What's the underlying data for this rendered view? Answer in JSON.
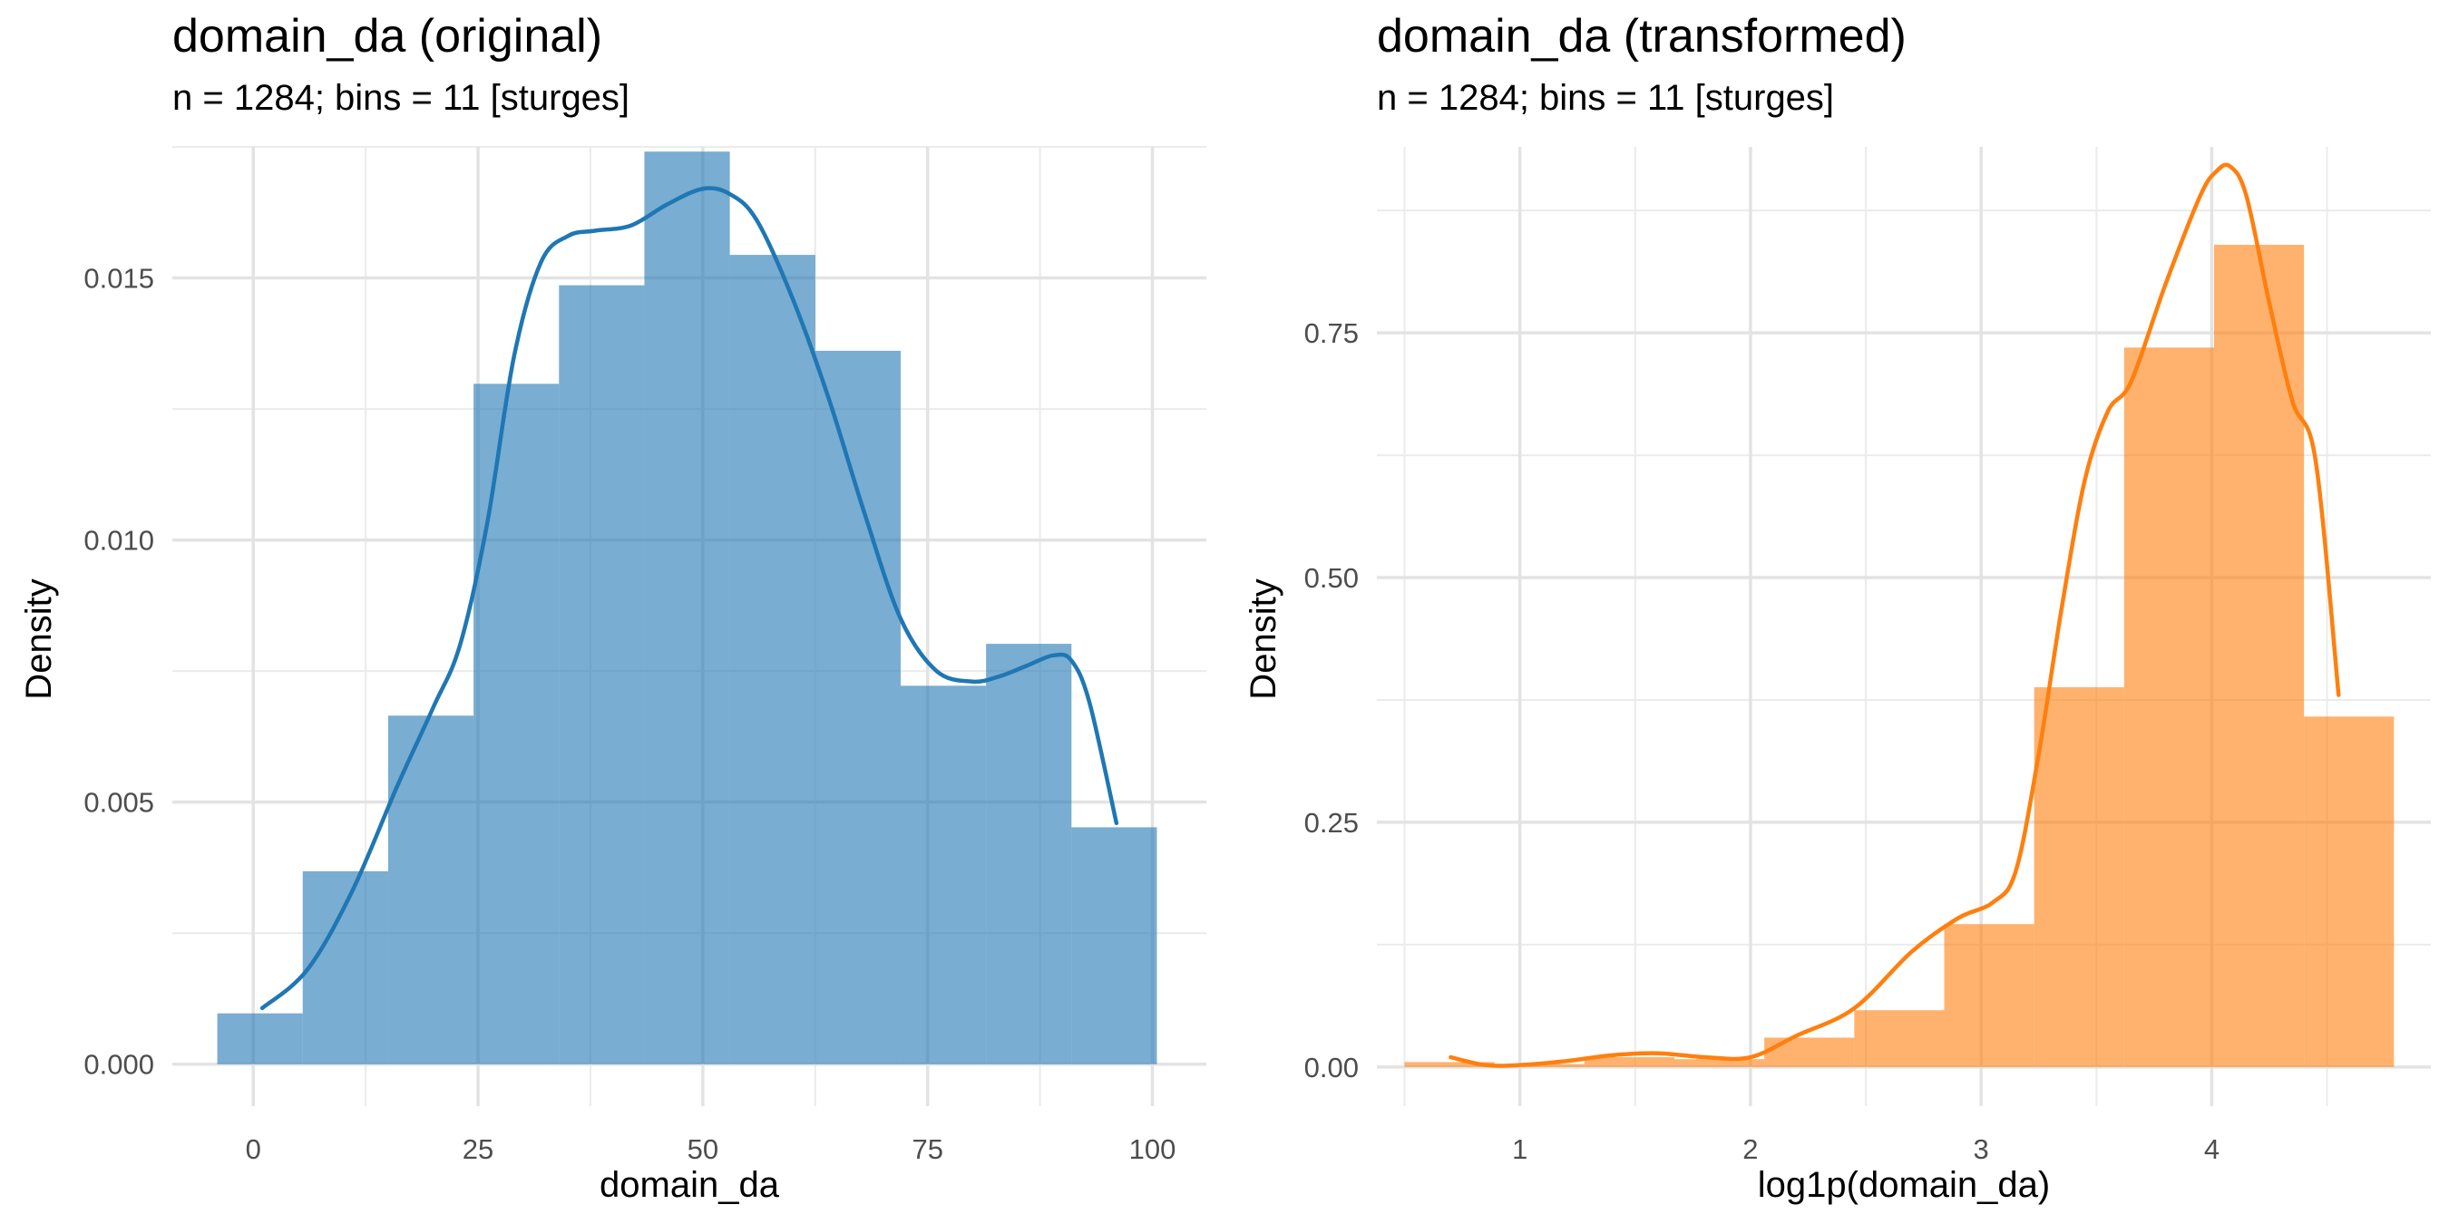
{
  "chart_data": [
    {
      "type": "histogram",
      "title": "domain_da (original)",
      "subtitle": "n = 1284; bins = 11 [sturges]",
      "xlabel": "domain_da",
      "ylabel": "Density",
      "xlim": [
        -9,
        106
      ],
      "ylim": [
        -0.0008,
        0.0175
      ],
      "xticks": [
        0,
        25,
        50,
        75,
        100
      ],
      "yticks": [
        0.0,
        0.005,
        0.01,
        0.015
      ],
      "ytick_labels": [
        "0.000",
        "0.005",
        "0.010",
        "0.015"
      ],
      "grid": true,
      "color": "#1f77b4",
      "bins": [
        {
          "x0": -4,
          "x1": 5.5,
          "density": 0.00097
        },
        {
          "x0": 5.5,
          "x1": 15,
          "density": 0.00368
        },
        {
          "x0": 15,
          "x1": 24.5,
          "density": 0.00665
        },
        {
          "x0": 24.5,
          "x1": 34,
          "density": 0.01298
        },
        {
          "x0": 34,
          "x1": 43.5,
          "density": 0.01486
        },
        {
          "x0": 43.5,
          "x1": 53,
          "density": 0.01741
        },
        {
          "x0": 53,
          "x1": 62.5,
          "density": 0.01544
        },
        {
          "x0": 62.5,
          "x1": 72,
          "density": 0.01361
        },
        {
          "x0": 72,
          "x1": 81.5,
          "density": 0.00722
        },
        {
          "x0": 81.5,
          "x1": 91,
          "density": 0.00802
        },
        {
          "x0": 91,
          "x1": 100.5,
          "density": 0.00452
        }
      ],
      "density_curve": {
        "x": [
          1,
          6,
          11,
          16,
          20,
          23,
          26,
          29,
          32,
          35,
          38,
          42,
          46,
          50,
          53,
          56,
          60,
          64,
          68,
          72,
          76,
          80,
          83,
          86,
          89,
          91,
          93,
          96
        ],
        "y": [
          0.00107,
          0.0018,
          0.0033,
          0.0053,
          0.0068,
          0.008,
          0.0103,
          0.0135,
          0.0153,
          0.0158,
          0.0159,
          0.016,
          0.0164,
          0.0167,
          0.0166,
          0.0161,
          0.0146,
          0.0127,
          0.0105,
          0.0085,
          0.0075,
          0.0073,
          0.0074,
          0.0076,
          0.0078,
          0.0077,
          0.0069,
          0.0046
        ]
      }
    },
    {
      "type": "histogram",
      "title": "domain_da (transformed)",
      "subtitle": "n = 1284; bins = 11 [sturges]",
      "xlabel": "log1p(domain_da)",
      "ylabel": "Density",
      "xlim": [
        0.38,
        4.95
      ],
      "ylim": [
        -0.04,
        0.94
      ],
      "xticks": [
        1,
        2,
        3,
        4
      ],
      "yticks": [
        0.0,
        0.25,
        0.5,
        0.75
      ],
      "ytick_labels": [
        "0.00",
        "0.25",
        "0.50",
        "0.75"
      ],
      "grid": true,
      "color": "#ff7f0e",
      "bins": [
        {
          "x0": 0.5,
          "x1": 0.89,
          "density": 0.005
        },
        {
          "x0": 0.89,
          "x1": 1.28,
          "density": 0.003
        },
        {
          "x0": 1.28,
          "x1": 1.67,
          "density": 0.01
        },
        {
          "x0": 1.67,
          "x1": 2.06,
          "density": 0.008
        },
        {
          "x0": 2.06,
          "x1": 2.45,
          "density": 0.03
        },
        {
          "x0": 2.45,
          "x1": 2.84,
          "density": 0.058
        },
        {
          "x0": 2.84,
          "x1": 3.23,
          "density": 0.146
        },
        {
          "x0": 3.23,
          "x1": 3.62,
          "density": 0.388
        },
        {
          "x0": 3.62,
          "x1": 4.01,
          "density": 0.735
        },
        {
          "x0": 4.01,
          "x1": 4.4,
          "density": 0.84
        },
        {
          "x0": 4.4,
          "x1": 4.79,
          "density": 0.358
        }
      ],
      "density_curve": {
        "x": [
          0.7,
          0.85,
          1.0,
          1.2,
          1.4,
          1.6,
          1.8,
          2.0,
          2.2,
          2.45,
          2.7,
          2.9,
          3.05,
          3.15,
          3.25,
          3.35,
          3.45,
          3.55,
          3.65,
          3.8,
          3.95,
          4.02,
          4.08,
          4.15,
          4.25,
          4.35,
          4.45,
          4.55
        ],
        "y": [
          0.01,
          0.002,
          0.002,
          0.006,
          0.012,
          0.014,
          0.01,
          0.01,
          0.032,
          0.06,
          0.118,
          0.152,
          0.168,
          0.2,
          0.32,
          0.47,
          0.6,
          0.67,
          0.7,
          0.8,
          0.89,
          0.915,
          0.92,
          0.89,
          0.78,
          0.68,
          0.62,
          0.38
        ]
      }
    }
  ]
}
